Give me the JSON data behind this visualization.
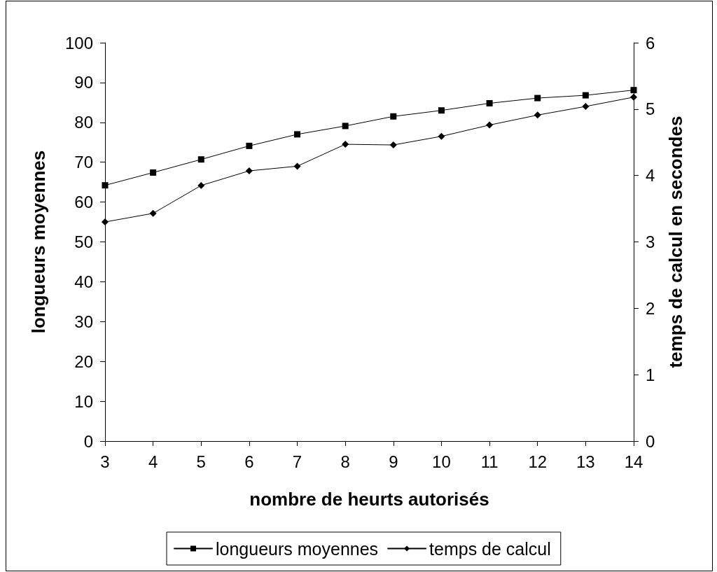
{
  "chart_data": {
    "type": "line",
    "xlabel": "nombre de heurts autorisés",
    "ylabel": "longueurs moyennes",
    "y2label": "temps de calcul en secondes",
    "x": [
      3,
      4,
      5,
      6,
      7,
      8,
      9,
      10,
      11,
      12,
      13,
      14
    ],
    "xlim": [
      3,
      14
    ],
    "xticks": [
      3,
      4,
      5,
      6,
      7,
      8,
      9,
      10,
      11,
      12,
      13,
      14
    ],
    "ylim": [
      0,
      100
    ],
    "yticks": [
      0,
      10,
      20,
      30,
      40,
      50,
      60,
      70,
      80,
      90,
      100
    ],
    "y2lim": [
      0,
      6
    ],
    "y2ticks": [
      0,
      1,
      2,
      3,
      4,
      5,
      6
    ],
    "grid": false,
    "legend": "bottom",
    "line_style": "solid",
    "series": [
      {
        "name": "longueurs moyennes",
        "color": "#000000",
        "marker": "square",
        "values": [
          64.2,
          67.4,
          70.7,
          74.1,
          77.0,
          79.1,
          81.5,
          83.0,
          84.8,
          86.1,
          86.8,
          88.1
        ]
      },
      {
        "name": "temps de calcul",
        "color": "#000000",
        "marker": "diamond",
        "axis": "y2",
        "values": [
          3.3,
          3.43,
          3.85,
          4.07,
          4.14,
          4.47,
          4.46,
          4.59,
          4.76,
          4.91,
          5.04,
          5.18
        ]
      }
    ]
  }
}
